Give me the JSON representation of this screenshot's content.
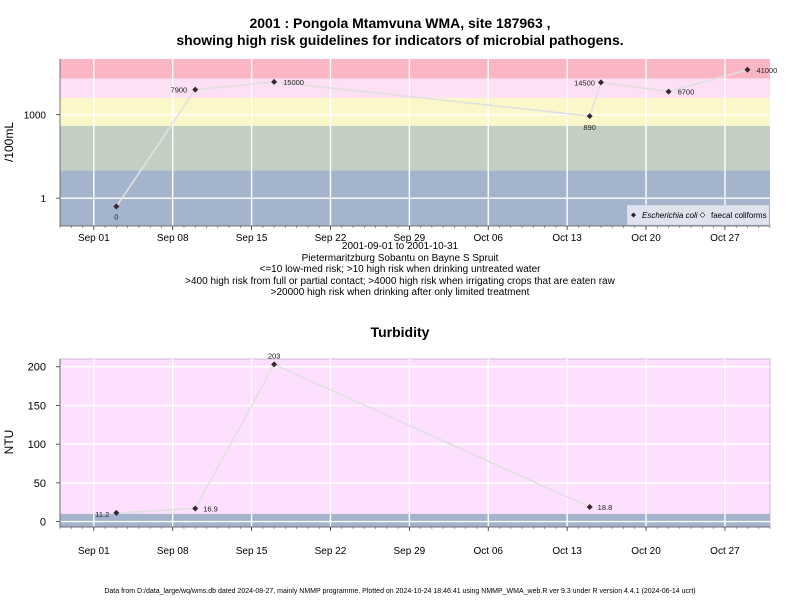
{
  "chart1": {
    "title_line1": "2001 : Pongola Mtamvuna WMA, site 187963 ,",
    "title_line2": "showing high risk guidelines for indicators of microbial pathogens.",
    "ylabel": "/100mL",
    "yticks": [
      {
        "v": 1,
        "label": "1"
      },
      {
        "v": 1000,
        "label": "1000"
      }
    ],
    "subtitle_lines": [
      "2001-09-01 to 2001-10-31",
      "Pietermaritzburg Sobantu on Bayne S Spruit",
      "<=10 low-med risk; >10 high risk when drinking untreated water",
      ">400 high risk from full or partial contact; >4000 high risk when irrigating crops that are eaten raw",
      ">20000 high risk when drinking after only limited treatment"
    ],
    "legend": {
      "ecoli": "Escherichia coli",
      "faecal": "faecal coliforms"
    },
    "colors": {
      "band_low": "#a3b4cc",
      "band_10": "#c4cfc3",
      "band_400": "#fcf7c8",
      "band_4000": "#fde0f5",
      "band_20000": "#fbb6c5",
      "line": "#e0e0e0",
      "point": "#3a2630"
    }
  },
  "chart2": {
    "title": "Turbidity",
    "ylabel": "NTU",
    "yticks": [
      0,
      50,
      100,
      150,
      200
    ],
    "colors": {
      "band_low": "#a3b4cc",
      "band_high": "#fde0fd"
    }
  },
  "xaxis": {
    "ticks": [
      {
        "date": "2001-09-01",
        "label": "Sep 01"
      },
      {
        "date": "2001-09-08",
        "label": "Sep 08"
      },
      {
        "date": "2001-09-15",
        "label": "Sep 15"
      },
      {
        "date": "2001-09-22",
        "label": "Sep 22"
      },
      {
        "date": "2001-09-29",
        "label": "Sep 29"
      },
      {
        "date": "2001-10-06",
        "label": "Oct 06"
      },
      {
        "date": "2001-10-13",
        "label": "Oct 13"
      },
      {
        "date": "2001-10-20",
        "label": "Oct 20"
      },
      {
        "date": "2001-10-27",
        "label": "Oct 27"
      }
    ]
  },
  "chart_data": [
    {
      "type": "line",
      "title": "2001 : Pongola Mtamvuna WMA, site 187963 , showing high risk guidelines for indicators of microbial pathogens.",
      "ylabel": "/100mL",
      "yscale": "log",
      "xrange": [
        "2001-08-29",
        "2001-10-31"
      ],
      "ylim": [
        0.1,
        100000
      ],
      "guideline_thresholds": [
        10,
        400,
        4000,
        20000
      ],
      "series": [
        {
          "name": "Escherichia coli",
          "points": [
            {
              "x": "2001-09-03",
              "y": 0.5,
              "label": "0"
            },
            {
              "x": "2001-09-10",
              "y": 7900,
              "label": "7900"
            },
            {
              "x": "2001-09-17",
              "y": 15000,
              "label": "15000"
            },
            {
              "x": "2001-10-15",
              "y": 890,
              "label": "890"
            },
            {
              "x": "2001-10-16",
              "y": 14500,
              "label": "14500"
            },
            {
              "x": "2001-10-22",
              "y": 6700,
              "label": "6700"
            },
            {
              "x": "2001-10-29",
              "y": 41000,
              "label": "41000"
            }
          ]
        }
      ]
    },
    {
      "type": "line",
      "title": "Turbidity",
      "ylabel": "NTU",
      "xrange": [
        "2001-08-29",
        "2001-10-31"
      ],
      "ylim": [
        -7,
        210
      ],
      "guideline_threshold": 10,
      "series": [
        {
          "name": "Turbidity",
          "points": [
            {
              "x": "2001-09-03",
              "y": 11.2,
              "label": "11.2"
            },
            {
              "x": "2001-09-10",
              "y": 16.9,
              "label": "16.9"
            },
            {
              "x": "2001-09-17",
              "y": 203,
              "label": "203"
            },
            {
              "x": "2001-10-15",
              "y": 18.8,
              "label": "18.8"
            }
          ]
        }
      ]
    }
  ],
  "footer": "Data from D:/data_large/wq/wms.db dated 2024-08-27, mainly NMMP programme. Plotted on 2024-10-24 18:46:41 using NMMP_WMA_web.R ver 9.3 under R version 4.4.1 (2024-06-14 ucrt)"
}
